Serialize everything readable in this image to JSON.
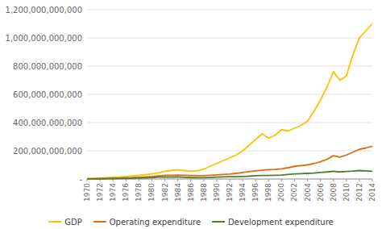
{
  "chart_data": {
    "type": "line",
    "x": [
      1970,
      1971,
      1972,
      1973,
      1974,
      1975,
      1976,
      1977,
      1978,
      1979,
      1980,
      1981,
      1982,
      1983,
      1984,
      1985,
      1986,
      1987,
      1988,
      1989,
      1990,
      1991,
      1992,
      1993,
      1994,
      1995,
      1996,
      1997,
      1998,
      1999,
      2000,
      2001,
      2002,
      2003,
      2004,
      2005,
      2006,
      2007,
      2008,
      2009,
      2010,
      2011,
      2012,
      2013,
      2014
    ],
    "series": [
      {
        "name": "GDP",
        "color": "#FFC000",
        "values": [
          4000000000,
          5000000000,
          6000000000,
          9000000000,
          13000000000,
          14000000000,
          18000000000,
          22000000000,
          26000000000,
          31000000000,
          36000000000,
          44000000000,
          55000000000,
          60000000000,
          65000000000,
          60000000000,
          55000000000,
          58000000000,
          70000000000,
          90000000000,
          110000000000,
          130000000000,
          150000000000,
          170000000000,
          200000000000,
          240000000000,
          280000000000,
          320000000000,
          290000000000,
          310000000000,
          350000000000,
          340000000000,
          360000000000,
          380000000000,
          410000000000,
          480000000000,
          560000000000,
          650000000000,
          760000000000,
          700000000000,
          730000000000,
          880000000000,
          1000000000000,
          1050000000000,
          1100000000000
        ]
      },
      {
        "name": "Operating expenditure",
        "color": "#E36C09",
        "values": [
          2000000000,
          2500000000,
          3000000000,
          4000000000,
          5500000000,
          7000000000,
          8500000000,
          10000000000,
          12500000000,
          15000000000,
          17500000000,
          22000000000,
          26000000000,
          27000000000,
          28000000000,
          26000000000,
          25000000000,
          24000000000,
          23000000000,
          26000000000,
          29000000000,
          32000000000,
          35000000000,
          40000000000,
          46000000000,
          52000000000,
          58000000000,
          62000000000,
          66000000000,
          68000000000,
          72000000000,
          80000000000,
          90000000000,
          95000000000,
          100000000000,
          110000000000,
          122000000000,
          140000000000,
          165000000000,
          155000000000,
          170000000000,
          190000000000,
          210000000000,
          220000000000,
          232000000000
        ]
      },
      {
        "name": "Development expenditure",
        "color": "#4F7C37",
        "values": [
          1000000000,
          1200000000,
          1500000000,
          2000000000,
          2800000000,
          3500000000,
          4200000000,
          5500000000,
          7000000000,
          8500000000,
          10000000000,
          13000000000,
          15000000000,
          14000000000,
          14500000000,
          12000000000,
          10000000000,
          9000000000,
          9500000000,
          11000000000,
          13000000000,
          15000000000,
          16000000000,
          17000000000,
          18000000000,
          20000000000,
          23000000000,
          25000000000,
          25000000000,
          26000000000,
          28000000000,
          32000000000,
          36000000000,
          38000000000,
          40000000000,
          42000000000,
          46000000000,
          50000000000,
          55000000000,
          50000000000,
          53000000000,
          56000000000,
          60000000000,
          58000000000,
          55000000000
        ]
      }
    ],
    "xlim": [
      1970,
      2014
    ],
    "xticks": [
      1970,
      1972,
      1974,
      1976,
      1978,
      1980,
      1982,
      1984,
      1986,
      1988,
      1990,
      1992,
      1994,
      1996,
      1998,
      2000,
      2002,
      2004,
      2006,
      2008,
      2010,
      2012,
      2014
    ],
    "ylim": [
      0,
      1200000000000
    ],
    "yticks": [
      {
        "value": 0,
        "label": "-"
      },
      {
        "value": 200000000000,
        "label": "200,000,000,000"
      },
      {
        "value": 400000000000,
        "label": "400,000,000,000"
      },
      {
        "value": 600000000000,
        "label": "600,000,000,000"
      },
      {
        "value": 800000000000,
        "label": "800,000,000,000"
      },
      {
        "value": 1000000000000,
        "label": "1,000,000,000,000"
      },
      {
        "value": 1200000000000,
        "label": "1,200,000,000,000"
      }
    ],
    "grid": true,
    "legend": "bottom"
  }
}
